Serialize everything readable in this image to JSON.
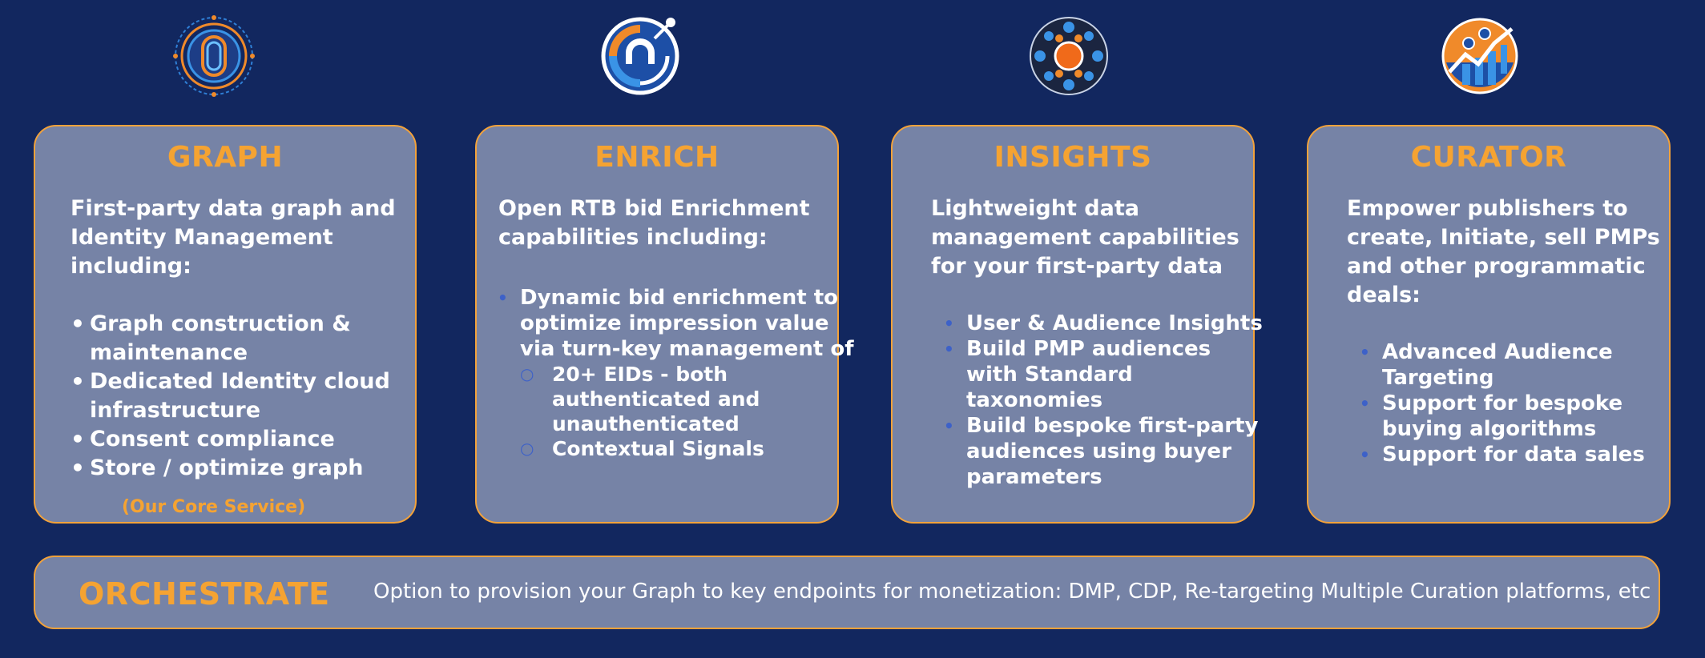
{
  "columns": [
    {
      "icon": "fingerprint-target-icon",
      "title": "GRAPH",
      "intro": [
        "First-party data graph and",
        "Identity Management",
        "including:"
      ],
      "bullets": [
        [
          "Graph construction &",
          "maintenance"
        ],
        [
          "Dedicated Identity cloud",
          "infrastructure"
        ],
        [
          "Consent compliance"
        ],
        [
          "Store / optimize graph"
        ]
      ],
      "note": "(Our Core Service)"
    },
    {
      "icon": "enrich-dial-icon",
      "title": "ENRICH",
      "intro": [
        "Open RTB bid Enrichment",
        "capabilities including:"
      ],
      "bullets": [
        [
          "Dynamic bid enrichment to",
          "optimize impression value",
          "via turn-key management of"
        ]
      ],
      "subbullets": [
        [
          "20+ EIDs - both",
          "authenticated and",
          "unauthenticated"
        ],
        [
          "Contextual Signals"
        ]
      ]
    },
    {
      "icon": "network-hub-icon",
      "title": "INSIGHTS",
      "intro": [
        "Lightweight data",
        "management capabilities",
        "for your first-party data"
      ],
      "bullets": [
        [
          "User & Audience Insights"
        ],
        [
          "Build PMP audiences",
          "with Standard",
          "taxonomies"
        ],
        [
          "Build bespoke first-party",
          "audiences using buyer",
          "parameters"
        ]
      ]
    },
    {
      "icon": "growth-chart-icon",
      "title": "CURATOR",
      "intro": [
        "Empower publishers to",
        "create, Initiate, sell PMPs",
        "and other programmatic",
        "deals:"
      ],
      "bullets": [
        [
          "Advanced Audience",
          "Targeting"
        ],
        [
          "Support for bespoke",
          "buying algorithms"
        ],
        [
          "Support for data sales"
        ]
      ]
    }
  ],
  "orchestrate": {
    "title": "ORCHESTRATE",
    "text": "Option to provision your Graph to key endpoints for monetization: DMP, CDP, Re-targeting Multiple Curation platforms, etc"
  },
  "colors": {
    "background": "#12275f",
    "card": "#7683a6",
    "accent": "#f5a332",
    "bullet_blue": "#3d61c8"
  }
}
